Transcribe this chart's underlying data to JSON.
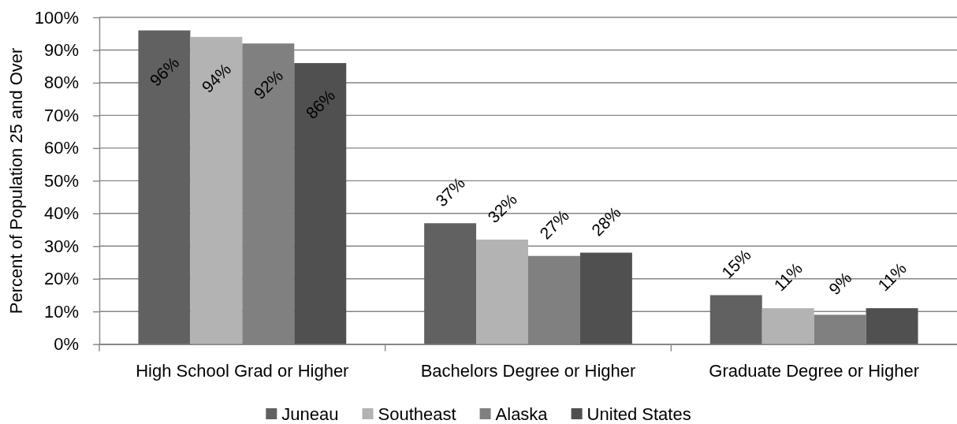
{
  "chart_data": {
    "type": "bar",
    "ylabel": "Percent of Population 25 and Over",
    "categories": [
      "High School Grad or Higher",
      "Bachelors Degree or Higher",
      "Graduate Degree or Higher"
    ],
    "series": [
      {
        "name": "Juneau",
        "color": "#616161",
        "values": [
          96,
          37,
          15
        ],
        "value_labels": [
          "96%",
          "37%",
          "15%"
        ]
      },
      {
        "name": "Southeast",
        "color": "#b3b3b3",
        "values": [
          94,
          32,
          11
        ],
        "value_labels": [
          "94%",
          "32%",
          "11%"
        ]
      },
      {
        "name": "Alaska",
        "color": "#808080",
        "values": [
          92,
          27,
          9
        ],
        "value_labels": [
          "92%",
          "27%",
          "9%"
        ]
      },
      {
        "name": "United States",
        "color": "#505050",
        "values": [
          86,
          28,
          11
        ],
        "value_labels": [
          "86%",
          "28%",
          "11%"
        ]
      }
    ],
    "ylim": [
      0,
      100
    ],
    "yticks": [
      {
        "value": 0,
        "label": "0%"
      },
      {
        "value": 10,
        "label": "10%"
      },
      {
        "value": 20,
        "label": "20%"
      },
      {
        "value": 30,
        "label": "30%"
      },
      {
        "value": 40,
        "label": "40%"
      },
      {
        "value": 50,
        "label": "50%"
      },
      {
        "value": 60,
        "label": "60%"
      },
      {
        "value": 70,
        "label": "70%"
      },
      {
        "value": 80,
        "label": "80%"
      },
      {
        "value": 90,
        "label": "90%"
      },
      {
        "value": 100,
        "label": "100%"
      }
    ],
    "grid": "y",
    "legend": "bottom"
  }
}
